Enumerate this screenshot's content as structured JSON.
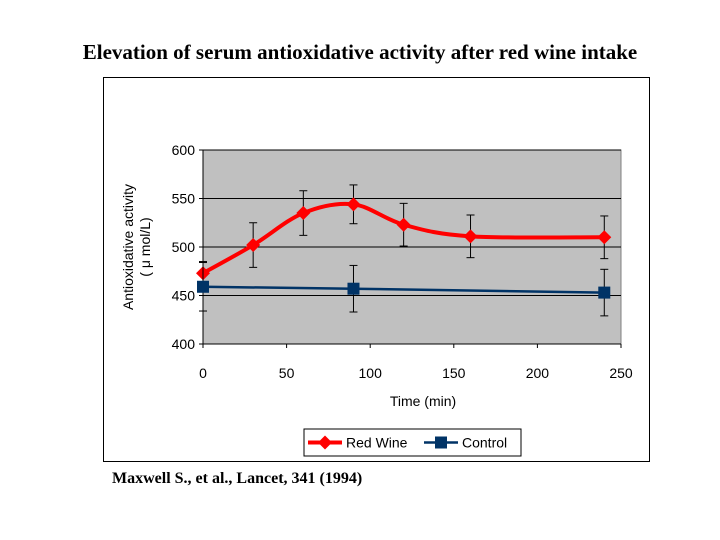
{
  "slide": {
    "title": "Elevation of serum antioxidative activity after red wine intake",
    "citation": "Maxwell S., et al., Lancet, 341 (1994)"
  },
  "chart_data": {
    "type": "line",
    "xlabel": "Time (min)",
    "ylabel_line1": "Antioxidative activity",
    "ylabel_line2": "( μ mol/L)",
    "xlim": [
      0,
      250
    ],
    "ylim": [
      400,
      600
    ],
    "xticks": [
      0,
      50,
      100,
      150,
      200,
      250
    ],
    "yticks": [
      400,
      450,
      500,
      550,
      600
    ],
    "grid": true,
    "legend_position": "bottom",
    "plot_background": "#c0c0c0",
    "series": [
      {
        "name": "Red Wine",
        "color": "#ff0000",
        "marker": "diamond",
        "smooth": true,
        "x": [
          0,
          30,
          60,
          90,
          120,
          160,
          240
        ],
        "y": [
          473,
          502,
          535,
          544,
          523,
          511,
          510
        ],
        "err": [
          12,
          23,
          23,
          20,
          22,
          22,
          22
        ]
      },
      {
        "name": "Control",
        "color": "#003366",
        "marker": "square",
        "smooth": false,
        "x": [
          0,
          90,
          240
        ],
        "y": [
          459,
          457,
          453
        ],
        "err": [
          25,
          24,
          24
        ]
      }
    ]
  }
}
